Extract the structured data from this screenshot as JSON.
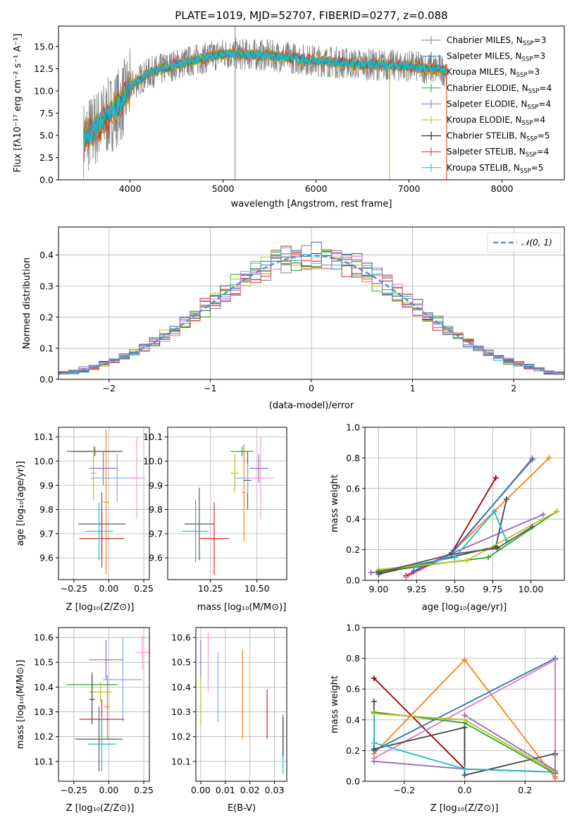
{
  "chart_data": [
    {
      "id": "spectrum",
      "type": "line",
      "title": "PLATE=1019, MJD=52707, FIBERID=0277, z=0.088",
      "xlabel": "wavelength [Angstrom, rest frame]",
      "ylabel": "Flux [fλ10⁻¹⁷ erg cm⁻² s⁻¹ A⁻¹]",
      "xlim": [
        3230,
        8670
      ],
      "ylim": [
        0,
        17.3
      ],
      "xticks": [
        "4000",
        "5000",
        "6000",
        "7000",
        "8000"
      ],
      "yticks": [
        "0.0",
        "2.5",
        "5.0",
        "7.5",
        "10.0",
        "12.5",
        "15.0"
      ],
      "continuum": {
        "x": [
          3500,
          3700,
          3900,
          4000,
          4200,
          4500,
          5000,
          5500,
          6000,
          6500,
          7000,
          7400
        ],
        "y": [
          4.5,
          6.5,
          8.5,
          10.5,
          12.0,
          13.0,
          14.2,
          14.0,
          13.4,
          13.0,
          12.8,
          12.3
        ]
      },
      "legend": [
        {
          "label": "Chabrier MILES, N",
          "sub": "SSP",
          "suffix": "=3",
          "color": "#7f7f7f"
        },
        {
          "label": "Salpeter MILES, N",
          "sub": "SSP",
          "suffix": "=3",
          "color": "#1f77b4"
        },
        {
          "label": "Kroupa MILES, N",
          "sub": "SSP",
          "suffix": "=3",
          "color": "#ff7f0e"
        },
        {
          "label": "Chabrier ELODIE, N",
          "sub": "SSP",
          "suffix": "=4",
          "color": "#2ca02c"
        },
        {
          "label": "Salpeter ELODIE, N",
          "sub": "SSP",
          "suffix": "=4",
          "color": "#9467bd"
        },
        {
          "label": "Kroupa ELODIE, N",
          "sub": "SSP",
          "suffix": "=4",
          "color": "#bcbd22"
        },
        {
          "label": "Chabrier STELIB, N",
          "sub": "SSP",
          "suffix": "=5",
          "color": "#000000"
        },
        {
          "label": "Salpeter STELIB, N",
          "sub": "SSP",
          "suffix": "=4",
          "color": "#d62728"
        },
        {
          "label": "Kroupa STELIB, N",
          "sub": "SSP",
          "suffix": "=5",
          "color": "#17becf"
        }
      ]
    },
    {
      "id": "residuals",
      "type": "line",
      "xlabel": "(data-model)/error",
      "ylabel": "Normed distribution",
      "xlim": [
        -2.5,
        2.5
      ],
      "ylim": [
        0,
        0.49
      ],
      "xticks": [
        "−2",
        "−1",
        "0",
        "1",
        "2"
      ],
      "yticks": [
        "0.0",
        "0.1",
        "0.2",
        "0.3",
        "0.4"
      ],
      "legend_label": "𝒩(0, 1)",
      "histogram_bin_width": 0.1
    },
    {
      "id": "z_age",
      "type": "scatter",
      "xlabel": "Z [log₁₀(Z/Z⊙)]",
      "ylabel": "age  [log₁₀(age/yr)]",
      "xlim": [
        -0.36,
        0.29
      ],
      "ylim": [
        9.51,
        10.14
      ],
      "xticks": [
        "−0.25",
        "0.00",
        "0.25"
      ],
      "yticks": [
        "9.6",
        "9.7",
        "9.8",
        "9.9",
        "10.0",
        "10.1"
      ],
      "points": [
        {
          "color": "#ff7f0e",
          "x": -0.02,
          "xerr": 0.02,
          "y": 9.83,
          "yerr": 0.3
        },
        {
          "color": "#2ca02c",
          "x": -0.1,
          "xerr": 0.16,
          "y": 10.04,
          "yerr": 0.015
        },
        {
          "color": "#595959",
          "x": -0.1,
          "xerr": 0.2,
          "y": 10.04,
          "yerr": 0.02
        },
        {
          "color": "#9467bd",
          "x": -0.04,
          "xerr": 0.1,
          "y": 9.97,
          "yerr": 0.07
        },
        {
          "color": "#7fb0e0",
          "x": 0.06,
          "xerr": 0.19,
          "y": 9.93,
          "yerr": 0.1
        },
        {
          "color": "#ff9ad5",
          "x": 0.2,
          "xerr": 0.06,
          "y": 9.93,
          "yerr": 0.17
        },
        {
          "color": "#bcbd22",
          "x": -0.11,
          "xerr": 0.02,
          "y": 9.95,
          "yerr": 0.11
        },
        {
          "color": "#595959",
          "x": -0.05,
          "xerr": 0.17,
          "y": 9.74,
          "yerr": 0.13
        },
        {
          "color": "#d62728",
          "x": -0.05,
          "xerr": 0.16,
          "y": 9.68,
          "yerr": 0.12
        },
        {
          "color": "#17becf",
          "x": -0.07,
          "xerr": 0.1,
          "y": 9.71,
          "yerr": 0.12
        }
      ]
    },
    {
      "id": "mass_age",
      "type": "scatter",
      "xlabel": "mass [log₁₀(M/M⊙)]",
      "ylabel": "",
      "xlim": [
        10.02,
        10.66
      ],
      "ylim": [
        9.51,
        10.14
      ],
      "xticks": [
        "10.25",
        "10.50"
      ],
      "yticks": [
        "9.6",
        "9.7",
        "9.8",
        "9.9",
        "10.0",
        "10.1"
      ],
      "points": [
        {
          "color": "#ff7f0e",
          "x": 10.43,
          "xerr": 0.01,
          "y": 9.87,
          "yerr": 0.2
        },
        {
          "color": "#2ca02c",
          "x": 10.42,
          "xerr": 0.06,
          "y": 10.04,
          "yerr": 0.02
        },
        {
          "color": "#595959",
          "x": 10.45,
          "xerr": 0.02,
          "y": 9.92,
          "yerr": 0.12
        },
        {
          "color": "#9467bd",
          "x": 10.51,
          "xerr": 0.05,
          "y": 9.97,
          "yerr": 0.06
        },
        {
          "color": "#7fb0e0",
          "x": 10.45,
          "xerr": 0.07,
          "y": 9.93,
          "yerr": 0.06
        },
        {
          "color": "#ff9ad5",
          "x": 10.52,
          "xerr": 0.07,
          "y": 9.93,
          "yerr": 0.17
        },
        {
          "color": "#bcbd22",
          "x": 10.38,
          "xerr": 0.02,
          "y": 9.95,
          "yerr": 0.08
        },
        {
          "color": "#595959",
          "x": 10.19,
          "xerr": 0.08,
          "y": 9.74,
          "yerr": 0.15
        },
        {
          "color": "#d62728",
          "x": 10.27,
          "xerr": 0.08,
          "y": 9.68,
          "yerr": 0.15
        },
        {
          "color": "#17becf",
          "x": 10.17,
          "xerr": 0.07,
          "y": 9.71,
          "yerr": 0.13
        }
      ]
    },
    {
      "id": "age_weight",
      "type": "line",
      "xlabel": "age  [log₁₀(age/yr)]",
      "ylabel": "mass weight",
      "xlim": [
        8.91,
        10.22
      ],
      "ylim": [
        0,
        1.0
      ],
      "xticks": [
        "9.00",
        "9.25",
        "9.50",
        "9.75",
        "10.00"
      ],
      "yticks": [
        "0.0",
        "0.2",
        "0.4",
        "0.6",
        "0.8",
        "1.0"
      ],
      "series": [
        {
          "color": "#ff7f0e",
          "x": [
            9.18,
            9.48,
            10.12
          ],
          "y": [
            0.02,
            0.18,
            0.8
          ]
        },
        {
          "color": "#a00000",
          "x": [
            9.18,
            9.48,
            9.77
          ],
          "y": [
            0.03,
            0.18,
            0.67
          ]
        },
        {
          "color": "#e377c2",
          "x": [
            9.18,
            9.48,
            10.01
          ],
          "y": [
            0.02,
            0.17,
            0.8
          ]
        },
        {
          "color": "#1f77b4",
          "x": [
            9.23,
            9.48,
            10.01
          ],
          "y": [
            0.06,
            0.18,
            0.79
          ]
        },
        {
          "color": "#9467bd",
          "x": [
            8.95,
            9.28,
            10.08
          ],
          "y": [
            0.05,
            0.09,
            0.43
          ]
        },
        {
          "color": "#444444",
          "x": [
            9.0,
            9.77,
            9.84
          ],
          "y": [
            0.04,
            0.22,
            0.53
          ]
        },
        {
          "color": "#17becf",
          "x": [
            9.0,
            9.5,
            9.76,
            9.84
          ],
          "y": [
            0.06,
            0.15,
            0.45,
            0.26
          ]
        },
        {
          "color": "#2ca02c",
          "x": [
            9.0,
            9.72,
            10.17
          ],
          "y": [
            0.06,
            0.15,
            0.45
          ]
        },
        {
          "color": "#bcbd22",
          "x": [
            9.0,
            9.58,
            10.17
          ],
          "y": [
            0.07,
            0.13,
            0.45
          ]
        },
        {
          "color": "#555555",
          "x": [
            9.0,
            9.48,
            9.78,
            10.01
          ],
          "y": [
            0.05,
            0.17,
            0.21,
            0.35
          ]
        }
      ]
    },
    {
      "id": "z_mass",
      "type": "scatter",
      "xlabel": "Z [log₁₀(Z/Z⊙)]",
      "ylabel": "mass [log₁₀(M/M⊙)]",
      "xlim": [
        -0.36,
        0.29
      ],
      "ylim": [
        10.02,
        10.64
      ],
      "xticks": [
        "−0.25",
        "0.00",
        "0.25"
      ],
      "yticks": [
        "10.1",
        "10.2",
        "10.3",
        "10.4",
        "10.5",
        "10.6"
      ],
      "points": [
        {
          "color": "#ff7f0e",
          "x": -0.01,
          "xerr": 0.02,
          "y": 10.32,
          "yerr": 0.13
        },
        {
          "color": "#2ca02c",
          "x": -0.12,
          "xerr": 0.18,
          "y": 10.41,
          "yerr": 0.05
        },
        {
          "color": "#9467bd",
          "x": -0.02,
          "xerr": 0.12,
          "y": 10.51,
          "yerr": 0.08
        },
        {
          "color": "#ff9ad5",
          "x": 0.24,
          "xerr": 0.05,
          "y": 10.54,
          "yerr": 0.07
        },
        {
          "color": "#7fb0e0",
          "x": 0.1,
          "xerr": 0.14,
          "y": 10.43,
          "yerr": 0.17
        },
        {
          "color": "#bcbd22",
          "x": -0.06,
          "xerr": 0.08,
          "y": 10.38,
          "yerr": 0.04
        },
        {
          "color": "#595959",
          "x": -0.07,
          "xerr": 0.17,
          "y": 10.19,
          "yerr": 0.13
        },
        {
          "color": "#d62728",
          "x": -0.05,
          "xerr": 0.16,
          "y": 10.27,
          "yerr": 0.08
        },
        {
          "color": "#17becf",
          "x": -0.05,
          "xerr": 0.1,
          "y": 10.17,
          "yerr": 0.11
        },
        {
          "color": "#444444",
          "x": -0.12,
          "xerr": 0.02,
          "y": 10.35,
          "yerr": 0.1
        }
      ]
    },
    {
      "id": "ebv_mass",
      "type": "scatter",
      "xlabel": "E(B-V)",
      "ylabel": "",
      "xlim": [
        -0.002,
        0.035
      ],
      "ylim": [
        10.02,
        10.64
      ],
      "xticks": [
        "0.00",
        "0.01",
        "0.02",
        "0.03"
      ],
      "yticks": [
        "10.1",
        "10.2",
        "10.3",
        "10.4",
        "10.5",
        "10.6"
      ],
      "points": [
        {
          "color": "#9467bd",
          "x": 0.0,
          "y": 10.51,
          "yerr": 0.08
        },
        {
          "color": "#bcbd22",
          "x": 0.0,
          "y": 10.35,
          "yerr": 0.1
        },
        {
          "color": "#ff9ad5",
          "x": 0.003,
          "y": 10.5,
          "yerr": 0.12
        },
        {
          "color": "#7fb0e0",
          "x": 0.007,
          "y": 10.4,
          "yerr": 0.14
        },
        {
          "color": "#ff7f0e",
          "x": 0.017,
          "y": 10.37,
          "yerr": 0.18
        },
        {
          "color": "#d62728",
          "x": 0.027,
          "y": 10.29,
          "yerr": 0.1
        },
        {
          "color": "#17becf",
          "x": 0.0335,
          "y": 10.17,
          "yerr": 0.12
        },
        {
          "color": "#444444",
          "x": 0.0335,
          "y": 10.2,
          "yerr": 0.08
        }
      ]
    },
    {
      "id": "z_weight",
      "type": "line",
      "xlabel": "Z [log₁₀(Z/Z⊙)]",
      "ylabel": "mass weight",
      "xlim": [
        -0.33,
        0.33
      ],
      "ylim": [
        0,
        1.0
      ],
      "xticks": [
        "−0.2",
        "0.0",
        "0.2"
      ],
      "yticks": [
        "0.0",
        "0.2",
        "0.4",
        "0.6",
        "0.8",
        "1.0"
      ],
      "series": [
        {
          "color": "#ff7f0e",
          "x": [
            -0.3,
            0.0,
            0.3
          ],
          "y": [
            0.18,
            0.79,
            0.02
          ]
        },
        {
          "color": "#a00000",
          "x": [
            -0.3,
            0.0,
            0.3
          ],
          "y": [
            0.67,
            0.08,
            0.06
          ]
        },
        {
          "color": "#1f77b4",
          "x": [
            -0.3,
            0.3,
            0.3
          ],
          "y": [
            0.2,
            0.8,
            0.05
          ]
        },
        {
          "color": "#e377c2",
          "x": [
            -0.3,
            0.3,
            0.3
          ],
          "y": [
            0.15,
            0.79,
            0.03
          ]
        },
        {
          "color": "#9467bd",
          "x": [
            -0.3,
            0.0,
            0.0,
            0.3
          ],
          "y": [
            0.13,
            0.08,
            0.43,
            0.07
          ]
        },
        {
          "color": "#444444",
          "x": [
            -0.3,
            -0.3,
            0.0,
            0.0,
            0.3
          ],
          "y": [
            0.52,
            0.21,
            0.35,
            0.04,
            0.18
          ]
        },
        {
          "color": "#17becf",
          "x": [
            -0.3,
            -0.3,
            0.0,
            0.3
          ],
          "y": [
            0.45,
            0.25,
            0.08,
            0.06
          ]
        },
        {
          "color": "#2ca02c",
          "x": [
            -0.3,
            0.0,
            0.3
          ],
          "y": [
            0.45,
            0.38,
            0.05
          ]
        },
        {
          "color": "#bcbd22",
          "x": [
            -0.3,
            0.0,
            0.3
          ],
          "y": [
            0.44,
            0.4,
            0.06
          ]
        },
        {
          "color": "#888888",
          "x": [
            0.3,
            0.3
          ],
          "y": [
            0.05,
            0.17
          ]
        }
      ]
    }
  ]
}
